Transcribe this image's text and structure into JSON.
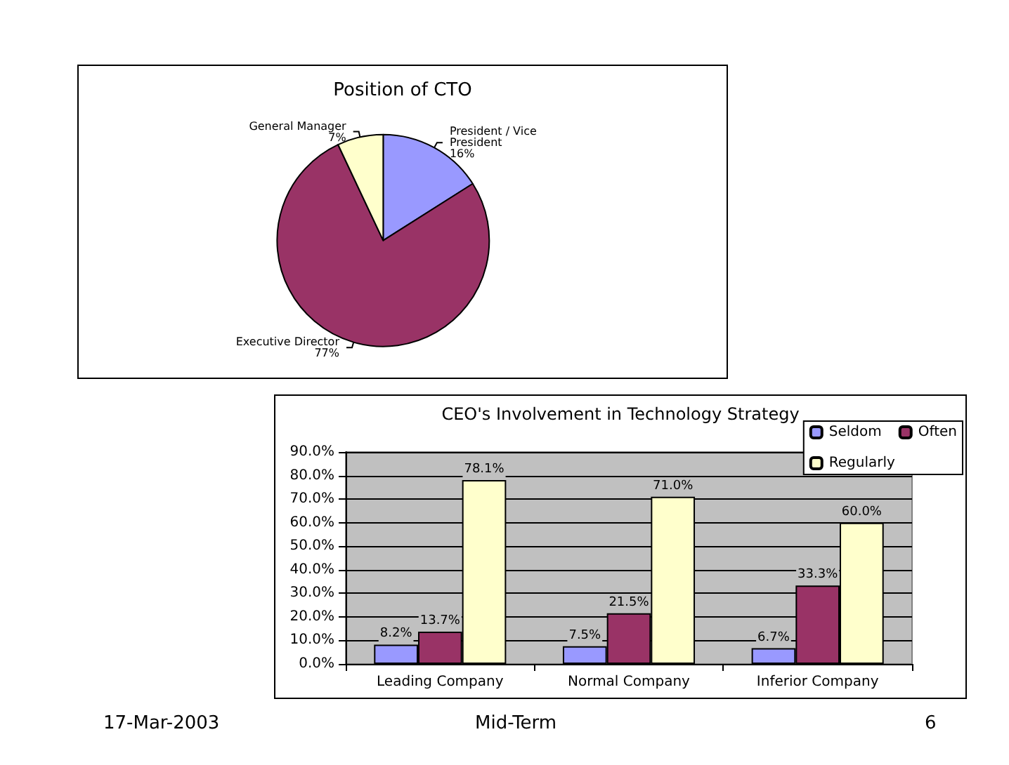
{
  "chart_data": [
    {
      "type": "pie",
      "title": "Position of CTO",
      "categories": [
        "President / Vice President",
        "Executive Director",
        "General Manager"
      ],
      "values": [
        16,
        77,
        7
      ],
      "colors": [
        "#9999ff",
        "#993366",
        "#ffffcc"
      ],
      "value_labels": [
        "16%",
        "77%",
        "7%"
      ],
      "legend": false
    },
    {
      "type": "bar",
      "title": "CEO's Involvement in Technology Strategy",
      "categories": [
        "Leading Company",
        "Normal Company",
        "Inferior Company"
      ],
      "series": [
        {
          "name": "Seldom",
          "color": "#9999ff",
          "values": [
            8.2,
            7.5,
            6.7
          ],
          "value_labels": [
            "8.2%",
            "7.5%",
            "6.7%"
          ]
        },
        {
          "name": "Often",
          "color": "#993366",
          "values": [
            13.7,
            21.5,
            33.3
          ],
          "value_labels": [
            "13.7%",
            "21.5%",
            "33.3%"
          ]
        },
        {
          "name": "Regularly",
          "color": "#ffffcc",
          "values": [
            78.1,
            71.0,
            60.0
          ],
          "value_labels": [
            "78.1%",
            "71.0%",
            "60.0%"
          ]
        }
      ],
      "ylim": [
        0,
        90
      ],
      "yticks": [
        {
          "value": 0,
          "label": "0.0%"
        },
        {
          "value": 10,
          "label": "10.0%"
        },
        {
          "value": 20,
          "label": "20.0%"
        },
        {
          "value": 30,
          "label": "30.0%"
        },
        {
          "value": 40,
          "label": "40.0%"
        },
        {
          "value": 50,
          "label": "50.0%"
        },
        {
          "value": 60,
          "label": "60.0%"
        },
        {
          "value": 70,
          "label": "70.0%"
        },
        {
          "value": 80,
          "label": "80.0%"
        },
        {
          "value": 90,
          "label": "90.0%"
        }
      ],
      "grid": "y",
      "legend": "top right",
      "annotations": [
        "17-Mar-2003",
        "Mid-Term",
        "6"
      ]
    }
  ]
}
